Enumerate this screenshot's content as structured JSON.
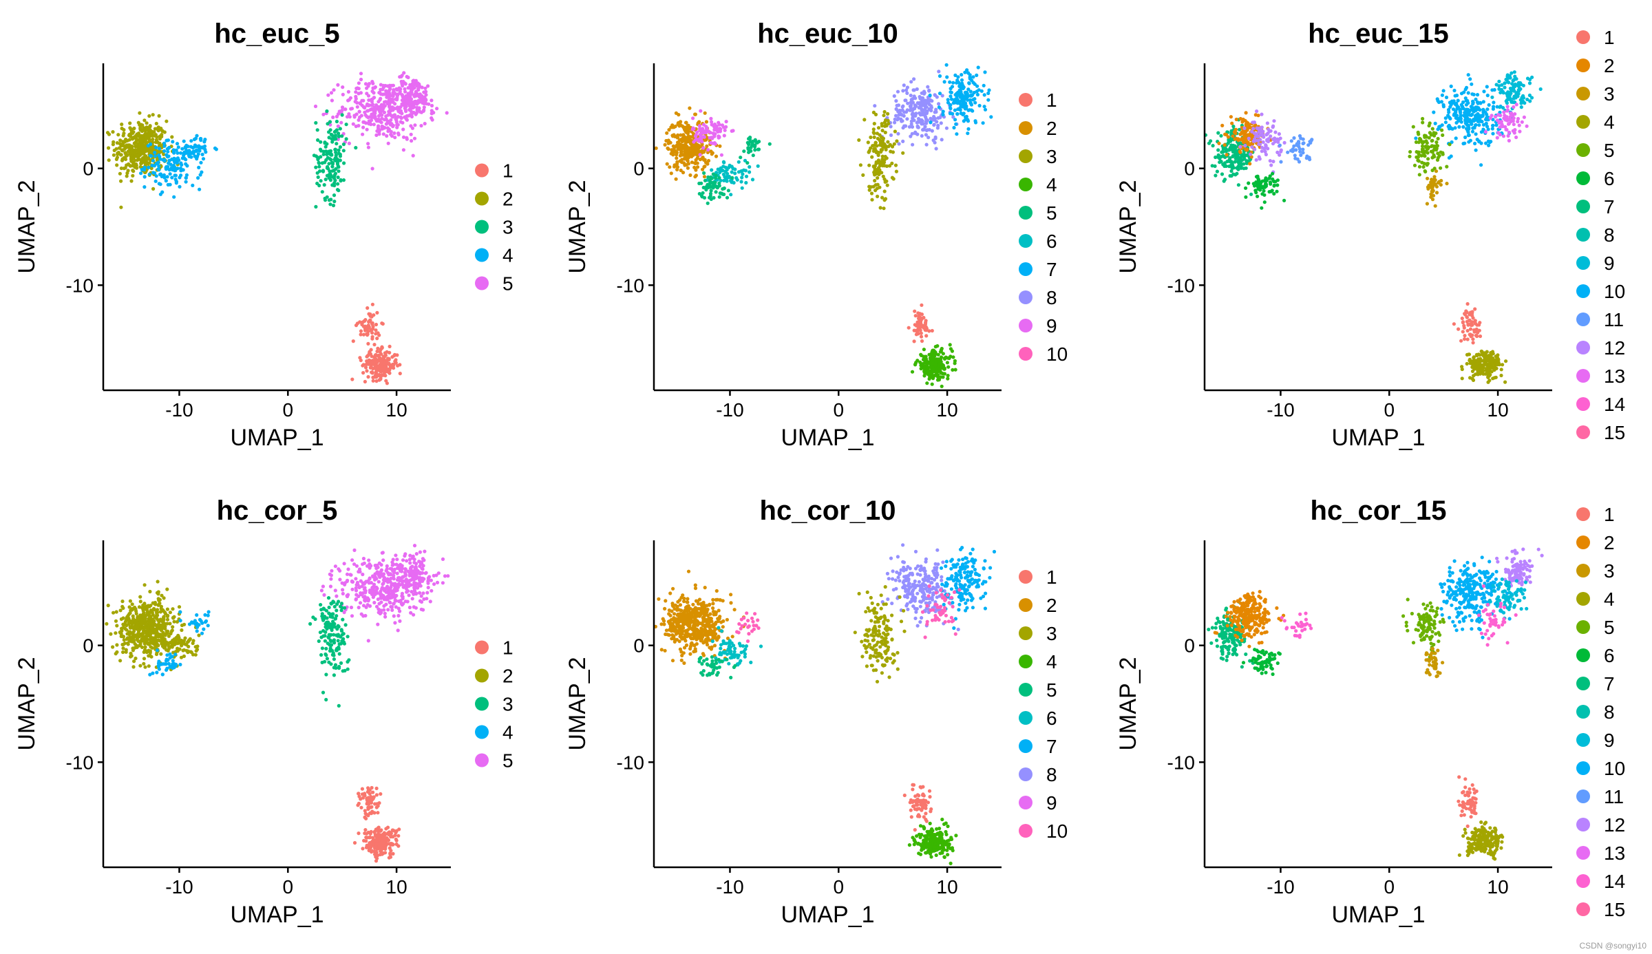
{
  "watermark": "CSDN @songyi10",
  "palettes": {
    "5": [
      "#F8766D",
      "#A3A500",
      "#00BF7D",
      "#00B0F6",
      "#E76BF3"
    ],
    "10": [
      "#F8766D",
      "#D89000",
      "#A3A500",
      "#39B600",
      "#00BF7D",
      "#00BFC4",
      "#00B0F6",
      "#9590FF",
      "#E76BF3",
      "#FF62BC"
    ],
    "15": [
      "#F8766D",
      "#E58700",
      "#C99800",
      "#A3A500",
      "#6BB100",
      "#00BA38",
      "#00BF7D",
      "#00C0AF",
      "#00BCD8",
      "#00B0F6",
      "#619CFF",
      "#B983FF",
      "#E76BF3",
      "#FD61D1",
      "#FF67A4"
    ]
  },
  "chart_data": [
    {
      "type": "scatter",
      "title": "hc_euc_5",
      "xlabel": "UMAP_1",
      "ylabel": "UMAP_2",
      "xlim": [
        -17,
        15
      ],
      "ylim": [
        -19,
        9
      ],
      "xticks": [
        -10,
        0,
        10
      ],
      "xtick_labels": [
        "-10",
        "0",
        "10"
      ],
      "yticks": [
        -10,
        0
      ],
      "ytick_labels": [
        "-10",
        "0"
      ],
      "legend": [
        "1",
        "2",
        "3",
        "4",
        "5"
      ],
      "clusters": [
        {
          "label": "2",
          "cx": -13.5,
          "cy": 1.7,
          "sx": 1.2,
          "sy": 1.2,
          "n": 420
        },
        {
          "label": "4",
          "cx": -10.5,
          "cy": 0.3,
          "sx": 1.3,
          "sy": 1.0,
          "n": 150
        },
        {
          "label": "4",
          "cx": -8.5,
          "cy": 1.8,
          "sx": 0.6,
          "sy": 0.5,
          "n": 40
        },
        {
          "label": "5",
          "cx": 8.8,
          "cy": 5.0,
          "sx": 2.0,
          "sy": 1.3,
          "n": 380
        },
        {
          "label": "5",
          "cx": 11.5,
          "cy": 6.2,
          "sx": 0.9,
          "sy": 0.8,
          "n": 120
        },
        {
          "label": "3",
          "cx": 4.0,
          "cy": 1.0,
          "sx": 0.7,
          "sy": 1.8,
          "n": 150
        },
        {
          "label": "1",
          "cx": 8.5,
          "cy": -16.8,
          "sx": 0.8,
          "sy": 0.6,
          "n": 200
        },
        {
          "label": "1",
          "cx": 7.5,
          "cy": -13.5,
          "sx": 0.5,
          "sy": 0.7,
          "n": 60
        }
      ]
    },
    {
      "type": "scatter",
      "title": "hc_euc_10",
      "xlabel": "UMAP_1",
      "ylabel": "UMAP_2",
      "xlim": [
        -17,
        15
      ],
      "ylim": [
        -19,
        9
      ],
      "xticks": [
        -10,
        0,
        10
      ],
      "xtick_labels": [
        "-10",
        "0",
        "10"
      ],
      "yticks": [
        -10,
        0
      ],
      "ytick_labels": [
        "-10",
        "0"
      ],
      "legend": [
        "1",
        "2",
        "3",
        "4",
        "5",
        "6",
        "7",
        "8",
        "9",
        "10"
      ],
      "clusters": [
        {
          "label": "2",
          "cx": -13.8,
          "cy": 2.0,
          "sx": 1.0,
          "sy": 1.1,
          "n": 320
        },
        {
          "label": "9",
          "cx": -11.8,
          "cy": 3.0,
          "sx": 0.8,
          "sy": 0.7,
          "n": 90
        },
        {
          "label": "6",
          "cx": -10.0,
          "cy": -0.5,
          "sx": 0.9,
          "sy": 0.6,
          "n": 70
        },
        {
          "label": "5",
          "cx": -11.5,
          "cy": -1.5,
          "sx": 0.7,
          "sy": 0.6,
          "n": 60
        },
        {
          "label": "5",
          "cx": -8.0,
          "cy": 1.8,
          "sx": 0.6,
          "sy": 0.5,
          "n": 30
        },
        {
          "label": "8",
          "cx": 7.5,
          "cy": 4.8,
          "sx": 1.3,
          "sy": 1.2,
          "n": 220
        },
        {
          "label": "7",
          "cx": 11.5,
          "cy": 6.0,
          "sx": 1.0,
          "sy": 1.2,
          "n": 170
        },
        {
          "label": "3",
          "cx": 3.8,
          "cy": 1.0,
          "sx": 0.7,
          "sy": 1.8,
          "n": 150
        },
        {
          "label": "1",
          "cx": 7.5,
          "cy": -13.5,
          "sx": 0.5,
          "sy": 0.7,
          "n": 60
        },
        {
          "label": "4",
          "cx": 8.8,
          "cy": -16.8,
          "sx": 0.8,
          "sy": 0.6,
          "n": 200
        }
      ]
    },
    {
      "type": "scatter",
      "title": "hc_euc_15",
      "xlabel": "UMAP_1",
      "ylabel": "UMAP_2",
      "xlim": [
        -17,
        15
      ],
      "ylim": [
        -19,
        9
      ],
      "xticks": [
        -10,
        0,
        10
      ],
      "xtick_labels": [
        "-10",
        "0",
        "10"
      ],
      "yticks": [
        -10,
        0
      ],
      "ytick_labels": [
        "-10",
        "0"
      ],
      "legend": [
        "1",
        "2",
        "3",
        "4",
        "5",
        "6",
        "7",
        "8",
        "9",
        "10",
        "11",
        "12",
        "13",
        "14",
        "15"
      ],
      "clusters": [
        {
          "label": "7",
          "cx": -14.2,
          "cy": 1.2,
          "sx": 0.9,
          "sy": 1.0,
          "n": 200
        },
        {
          "label": "2",
          "cx": -13.0,
          "cy": 2.8,
          "sx": 0.8,
          "sy": 0.7,
          "n": 140
        },
        {
          "label": "12",
          "cx": -11.5,
          "cy": 2.5,
          "sx": 0.8,
          "sy": 0.8,
          "n": 90
        },
        {
          "label": "6",
          "cx": -11.5,
          "cy": -1.5,
          "sx": 0.7,
          "sy": 0.6,
          "n": 60
        },
        {
          "label": "11",
          "cx": -8.3,
          "cy": 1.8,
          "sx": 0.7,
          "sy": 0.5,
          "n": 40
        },
        {
          "label": "10",
          "cx": 7.5,
          "cy": 4.5,
          "sx": 1.4,
          "sy": 1.3,
          "n": 260
        },
        {
          "label": "9",
          "cx": 11.5,
          "cy": 6.5,
          "sx": 0.8,
          "sy": 0.8,
          "n": 100
        },
        {
          "label": "13",
          "cx": 11.0,
          "cy": 4.0,
          "sx": 0.8,
          "sy": 0.7,
          "n": 60
        },
        {
          "label": "5",
          "cx": 3.5,
          "cy": 1.5,
          "sx": 0.7,
          "sy": 1.0,
          "n": 100
        },
        {
          "label": "3",
          "cx": 4.0,
          "cy": -1.5,
          "sx": 0.4,
          "sy": 0.6,
          "n": 40
        },
        {
          "label": "1",
          "cx": 7.5,
          "cy": -13.5,
          "sx": 0.5,
          "sy": 0.7,
          "n": 60
        },
        {
          "label": "4",
          "cx": 8.8,
          "cy": -16.8,
          "sx": 0.8,
          "sy": 0.6,
          "n": 200
        }
      ]
    },
    {
      "type": "scatter",
      "title": "hc_cor_5",
      "xlabel": "UMAP_1",
      "ylabel": "UMAP_2",
      "xlim": [
        -17,
        15
      ],
      "ylim": [
        -19,
        9
      ],
      "xticks": [
        -10,
        0,
        10
      ],
      "xtick_labels": [
        "-10",
        "0",
        "10"
      ],
      "yticks": [
        -10,
        0
      ],
      "ytick_labels": [
        "-10",
        "0"
      ],
      "legend": [
        "1",
        "2",
        "3",
        "4",
        "5"
      ],
      "clusters": [
        {
          "label": "2",
          "cx": -13.0,
          "cy": 1.5,
          "sx": 1.4,
          "sy": 1.2,
          "n": 500
        },
        {
          "label": "2",
          "cx": -10.0,
          "cy": 0.0,
          "sx": 0.9,
          "sy": 0.6,
          "n": 80
        },
        {
          "label": "4",
          "cx": -11.0,
          "cy": -1.5,
          "sx": 0.7,
          "sy": 0.5,
          "n": 40
        },
        {
          "label": "4",
          "cx": -8.3,
          "cy": 2.0,
          "sx": 0.5,
          "sy": 0.4,
          "n": 25
        },
        {
          "label": "5",
          "cx": 8.8,
          "cy": 5.0,
          "sx": 2.0,
          "sy": 1.3,
          "n": 380
        },
        {
          "label": "5",
          "cx": 11.5,
          "cy": 6.2,
          "sx": 0.9,
          "sy": 0.8,
          "n": 120
        },
        {
          "label": "3",
          "cx": 4.0,
          "cy": 1.0,
          "sx": 0.7,
          "sy": 1.8,
          "n": 150
        },
        {
          "label": "1",
          "cx": 8.5,
          "cy": -16.8,
          "sx": 0.8,
          "sy": 0.6,
          "n": 200
        },
        {
          "label": "1",
          "cx": 7.5,
          "cy": -13.5,
          "sx": 0.5,
          "sy": 0.7,
          "n": 60
        }
      ]
    },
    {
      "type": "scatter",
      "title": "hc_cor_10",
      "xlabel": "UMAP_1",
      "ylabel": "UMAP_2",
      "xlim": [
        -17,
        15
      ],
      "ylim": [
        -19,
        9
      ],
      "xticks": [
        -10,
        0,
        10
      ],
      "xtick_labels": [
        "-10",
        "0",
        "10"
      ],
      "yticks": [
        -10,
        0
      ],
      "ytick_labels": [
        "-10",
        "0"
      ],
      "legend": [
        "1",
        "2",
        "3",
        "4",
        "5",
        "6",
        "7",
        "8",
        "9",
        "10"
      ],
      "clusters": [
        {
          "label": "2",
          "cx": -13.2,
          "cy": 1.8,
          "sx": 1.4,
          "sy": 1.2,
          "n": 480
        },
        {
          "label": "6",
          "cx": -10.0,
          "cy": -0.5,
          "sx": 0.9,
          "sy": 0.6,
          "n": 60
        },
        {
          "label": "5",
          "cx": -11.5,
          "cy": -1.7,
          "sx": 0.6,
          "sy": 0.5,
          "n": 40
        },
        {
          "label": "10",
          "cx": -8.3,
          "cy": 1.8,
          "sx": 0.5,
          "sy": 0.5,
          "n": 25
        },
        {
          "label": "8",
          "cx": 7.5,
          "cy": 4.8,
          "sx": 1.3,
          "sy": 1.2,
          "n": 220
        },
        {
          "label": "7",
          "cx": 11.5,
          "cy": 5.5,
          "sx": 1.0,
          "sy": 1.3,
          "n": 170
        },
        {
          "label": "10",
          "cx": 9.5,
          "cy": 3.0,
          "sx": 0.8,
          "sy": 0.9,
          "n": 50
        },
        {
          "label": "3",
          "cx": 3.8,
          "cy": 1.0,
          "sx": 0.7,
          "sy": 1.8,
          "n": 150
        },
        {
          "label": "1",
          "cx": 7.5,
          "cy": -13.5,
          "sx": 0.5,
          "sy": 0.7,
          "n": 60
        },
        {
          "label": "4",
          "cx": 8.8,
          "cy": -16.8,
          "sx": 0.8,
          "sy": 0.6,
          "n": 220
        }
      ]
    },
    {
      "type": "scatter",
      "title": "hc_cor_15",
      "xlabel": "UMAP_1",
      "ylabel": "UMAP_2",
      "xlim": [
        -17,
        15
      ],
      "ylim": [
        -19,
        9
      ],
      "xticks": [
        -10,
        0,
        10
      ],
      "xtick_labels": [
        "-10",
        "0",
        "10"
      ],
      "yticks": [
        -10,
        0
      ],
      "ytick_labels": [
        "-10",
        "0"
      ],
      "legend": [
        "1",
        "2",
        "3",
        "4",
        "5",
        "6",
        "7",
        "8",
        "9",
        "10",
        "11",
        "12",
        "13",
        "14",
        "15"
      ],
      "clusters": [
        {
          "label": "7",
          "cx": -14.5,
          "cy": 1.0,
          "sx": 0.8,
          "sy": 1.0,
          "n": 170
        },
        {
          "label": "2",
          "cx": -12.8,
          "cy": 2.5,
          "sx": 1.0,
          "sy": 0.9,
          "n": 240
        },
        {
          "label": "6",
          "cx": -11.5,
          "cy": -1.5,
          "sx": 0.7,
          "sy": 0.6,
          "n": 60
        },
        {
          "label": "14",
          "cx": -8.3,
          "cy": 1.8,
          "sx": 0.6,
          "sy": 0.5,
          "n": 30
        },
        {
          "label": "10",
          "cx": 7.5,
          "cy": 4.5,
          "sx": 1.4,
          "sy": 1.3,
          "n": 260
        },
        {
          "label": "12",
          "cx": 11.8,
          "cy": 6.5,
          "sx": 0.7,
          "sy": 0.7,
          "n": 90
        },
        {
          "label": "9",
          "cx": 11.0,
          "cy": 4.0,
          "sx": 0.8,
          "sy": 0.8,
          "n": 70
        },
        {
          "label": "14",
          "cx": 9.5,
          "cy": 2.0,
          "sx": 0.7,
          "sy": 0.8,
          "n": 40
        },
        {
          "label": "5",
          "cx": 3.5,
          "cy": 1.5,
          "sx": 0.7,
          "sy": 1.0,
          "n": 100
        },
        {
          "label": "3",
          "cx": 4.0,
          "cy": -1.5,
          "sx": 0.4,
          "sy": 0.6,
          "n": 40
        },
        {
          "label": "1",
          "cx": 7.5,
          "cy": -13.5,
          "sx": 0.5,
          "sy": 0.7,
          "n": 60
        },
        {
          "label": "4",
          "cx": 8.8,
          "cy": -16.8,
          "sx": 0.8,
          "sy": 0.6,
          "n": 200
        }
      ]
    }
  ]
}
